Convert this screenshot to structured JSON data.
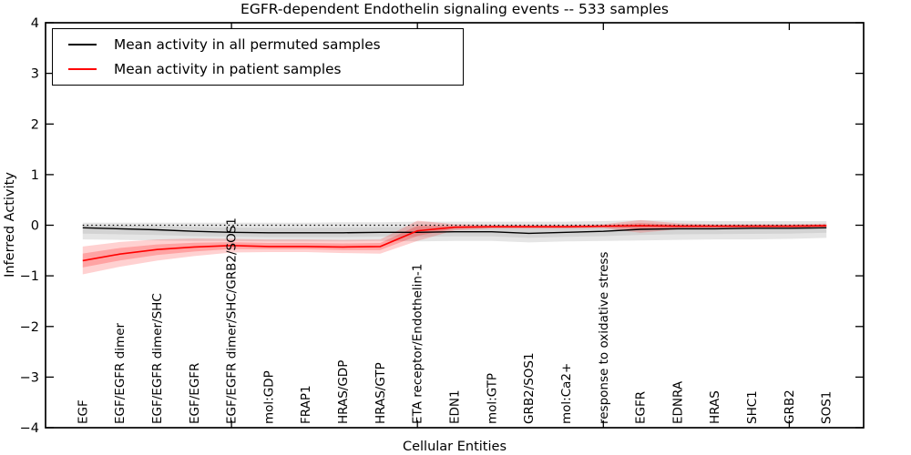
{
  "title": "EGFR-dependent Endothelin signaling events -- 533 samples",
  "chart_data": {
    "type": "line",
    "title": "EGFR-dependent Endothelin signaling events -- 533 samples",
    "xlabel": "Cellular Entities",
    "ylabel": "Inferred Activity",
    "ylim": [
      -4,
      4
    ],
    "xlim": [
      0,
      22
    ],
    "yticks": [
      4,
      3,
      2,
      1,
      0,
      -1,
      -2,
      -3,
      -4
    ],
    "ytick_labels": [
      "4",
      "3",
      "2",
      "1",
      "0",
      "−1",
      "−2",
      "−3",
      "−4"
    ],
    "xticks_major": [
      5,
      10,
      15,
      20
    ],
    "grid": false,
    "legend_position": "upper left",
    "zero_reference_line": {
      "y": 0,
      "style": "dotted",
      "color": "#000000"
    },
    "categories": [
      "EGF",
      "EGF/EGFR dimer",
      "EGF/EGFR dimer/SHC",
      "EGF/EGFR",
      "EGF/EGFR dimer/SHC/GRB2/SOS1",
      "mol:GDP",
      "FRAP1",
      "HRAS/GDP",
      "HRAS/GTP",
      "ETA receptor/Endothelin-1",
      "EDN1",
      "mol:GTP",
      "GRB2/SOS1",
      "mol:Ca2+",
      "response to oxidative stress",
      "EGFR",
      "EDNRA",
      "HRAS",
      "SHC1",
      "GRB2",
      "SOS1"
    ],
    "series": [
      {
        "name": "Mean activity in all permuted samples",
        "color": "#000000",
        "values": [
          -0.05,
          -0.07,
          -0.09,
          -0.12,
          -0.14,
          -0.15,
          -0.15,
          -0.15,
          -0.14,
          -0.14,
          -0.13,
          -0.13,
          -0.16,
          -0.14,
          -0.12,
          -0.08,
          -0.07,
          -0.07,
          -0.06,
          -0.06,
          -0.05
        ],
        "band_upper": [
          0.05,
          0.05,
          0.05,
          0.05,
          0.05,
          0.05,
          0.05,
          0.06,
          0.06,
          0.07,
          0.07,
          0.07,
          0.07,
          0.07,
          0.08,
          0.1,
          0.09,
          0.08,
          0.08,
          0.08,
          0.08
        ],
        "band_lower": [
          -0.28,
          -0.29,
          -0.3,
          -0.31,
          -0.31,
          -0.32,
          -0.32,
          -0.32,
          -0.31,
          -0.32,
          -0.31,
          -0.31,
          -0.34,
          -0.32,
          -0.31,
          -0.3,
          -0.29,
          -0.28,
          -0.28,
          -0.27,
          -0.25
        ],
        "band_color_outer": "rgba(0,0,0,0.10)",
        "band_color_inner": "rgba(0,0,0,0.08)"
      },
      {
        "name": "Mean activity in patient samples",
        "color": "#ff0000",
        "values": [
          -0.7,
          -0.57,
          -0.48,
          -0.43,
          -0.4,
          -0.42,
          -0.42,
          -0.43,
          -0.42,
          -0.11,
          -0.04,
          -0.03,
          -0.03,
          -0.03,
          -0.02,
          -0.01,
          -0.02,
          -0.02,
          -0.02,
          -0.02,
          -0.01
        ],
        "band_upper": [
          -0.42,
          -0.33,
          -0.28,
          -0.26,
          -0.27,
          -0.28,
          -0.28,
          -0.29,
          -0.28,
          0.09,
          0.02,
          0.01,
          0.01,
          0.01,
          0.02,
          0.1,
          0.04,
          0.02,
          0.02,
          0.02,
          0.03
        ],
        "band_lower": [
          -0.97,
          -0.82,
          -0.7,
          -0.61,
          -0.54,
          -0.53,
          -0.53,
          -0.55,
          -0.56,
          -0.31,
          -0.1,
          -0.07,
          -0.07,
          -0.07,
          -0.06,
          -0.15,
          -0.08,
          -0.06,
          -0.06,
          -0.06,
          -0.05
        ],
        "band_color_outer": "rgba(255,0,0,0.18)",
        "band_color_inner": "rgba(255,0,0,0.22)"
      }
    ],
    "band_inner_fraction": 0.5
  }
}
